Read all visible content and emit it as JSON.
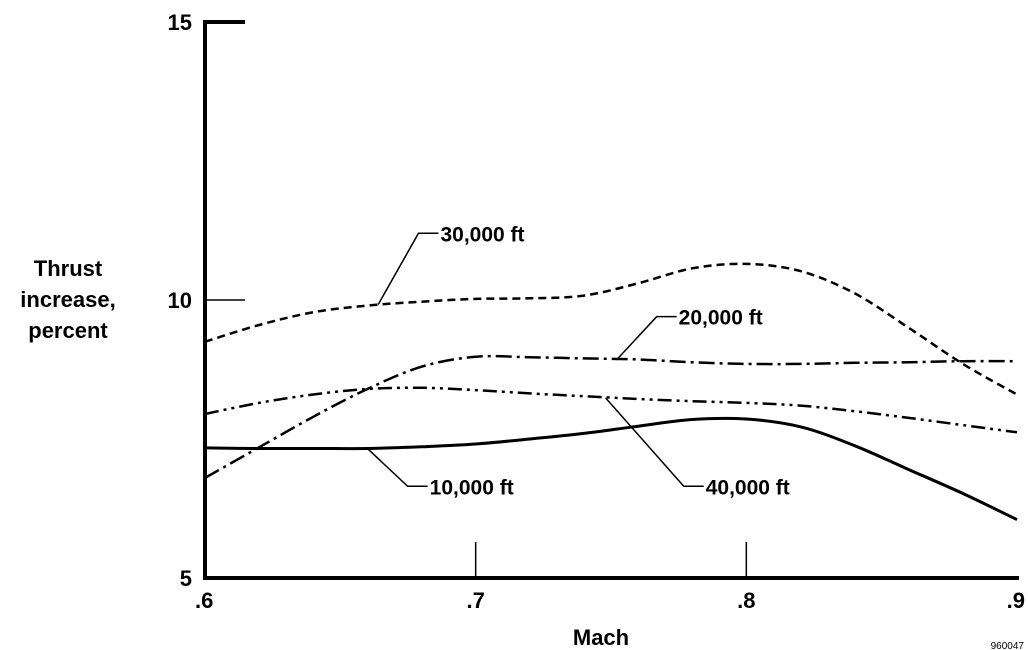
{
  "chart_data": {
    "type": "line",
    "title": "",
    "xlabel": "Mach",
    "ylabel_lines": [
      "Thrust",
      "increase,",
      "percent"
    ],
    "xlim": [
      0.6,
      0.9
    ],
    "ylim": [
      5,
      15
    ],
    "x_ticks": [
      {
        "value": 0.6,
        "label": ".6"
      },
      {
        "value": 0.7,
        "label": ".7"
      },
      {
        "value": 0.8,
        "label": ".8"
      },
      {
        "value": 0.9,
        "label": ".9"
      }
    ],
    "y_ticks": [
      {
        "value": 5,
        "label": "5"
      },
      {
        "value": 10,
        "label": "10"
      },
      {
        "value": 15,
        "label": "15"
      }
    ],
    "grid": false,
    "series": [
      {
        "name": "10,000 ft",
        "line_style": "solid",
        "x": [
          0.6,
          0.62,
          0.64,
          0.66,
          0.68,
          0.7,
          0.72,
          0.74,
          0.76,
          0.78,
          0.8,
          0.82,
          0.84,
          0.86,
          0.88,
          0.9
        ],
        "y": [
          7.34,
          7.33,
          7.33,
          7.33,
          7.36,
          7.41,
          7.5,
          7.6,
          7.73,
          7.85,
          7.86,
          7.72,
          7.38,
          6.95,
          6.52,
          6.05
        ],
        "label_anchor": {
          "x": 0.66,
          "y": 7.33
        },
        "label_pos": {
          "x": 0.683,
          "y": 6.65
        }
      },
      {
        "name": "20,000 ft",
        "line_style": "dashdot",
        "x": [
          0.6,
          0.62,
          0.64,
          0.66,
          0.68,
          0.7,
          0.72,
          0.74,
          0.76,
          0.78,
          0.8,
          0.82,
          0.84,
          0.86,
          0.88,
          0.9
        ],
        "y": [
          6.8,
          7.35,
          7.9,
          8.4,
          8.8,
          8.98,
          8.97,
          8.95,
          8.93,
          8.88,
          8.85,
          8.85,
          8.87,
          8.88,
          8.9,
          8.9
        ],
        "label_anchor": {
          "x": 0.752,
          "y": 8.92
        },
        "label_pos": {
          "x": 0.775,
          "y": 9.7
        }
      },
      {
        "name": "30,000 ft",
        "line_style": "dashed",
        "x": [
          0.6,
          0.62,
          0.64,
          0.66,
          0.68,
          0.7,
          0.72,
          0.74,
          0.76,
          0.78,
          0.8,
          0.82,
          0.84,
          0.86,
          0.88,
          0.9
        ],
        "y": [
          9.25,
          9.55,
          9.78,
          9.9,
          9.97,
          10.02,
          10.03,
          10.08,
          10.3,
          10.57,
          10.65,
          10.52,
          10.12,
          9.5,
          8.85,
          8.3
        ],
        "label_anchor": {
          "x": 0.664,
          "y": 9.92
        },
        "label_pos": {
          "x": 0.687,
          "y": 11.2
        }
      },
      {
        "name": "40,000 ft",
        "line_style": "dashdotdot",
        "x": [
          0.6,
          0.62,
          0.64,
          0.66,
          0.68,
          0.7,
          0.72,
          0.74,
          0.76,
          0.78,
          0.8,
          0.82,
          0.84,
          0.86,
          0.88,
          0.9
        ],
        "y": [
          7.95,
          8.15,
          8.3,
          8.4,
          8.42,
          8.38,
          8.32,
          8.27,
          8.22,
          8.18,
          8.15,
          8.1,
          8.0,
          7.88,
          7.75,
          7.62
        ],
        "label_anchor": {
          "x": 0.748,
          "y": 8.24
        },
        "label_pos": {
          "x": 0.785,
          "y": 6.65
        }
      }
    ]
  },
  "footnote": "960047"
}
